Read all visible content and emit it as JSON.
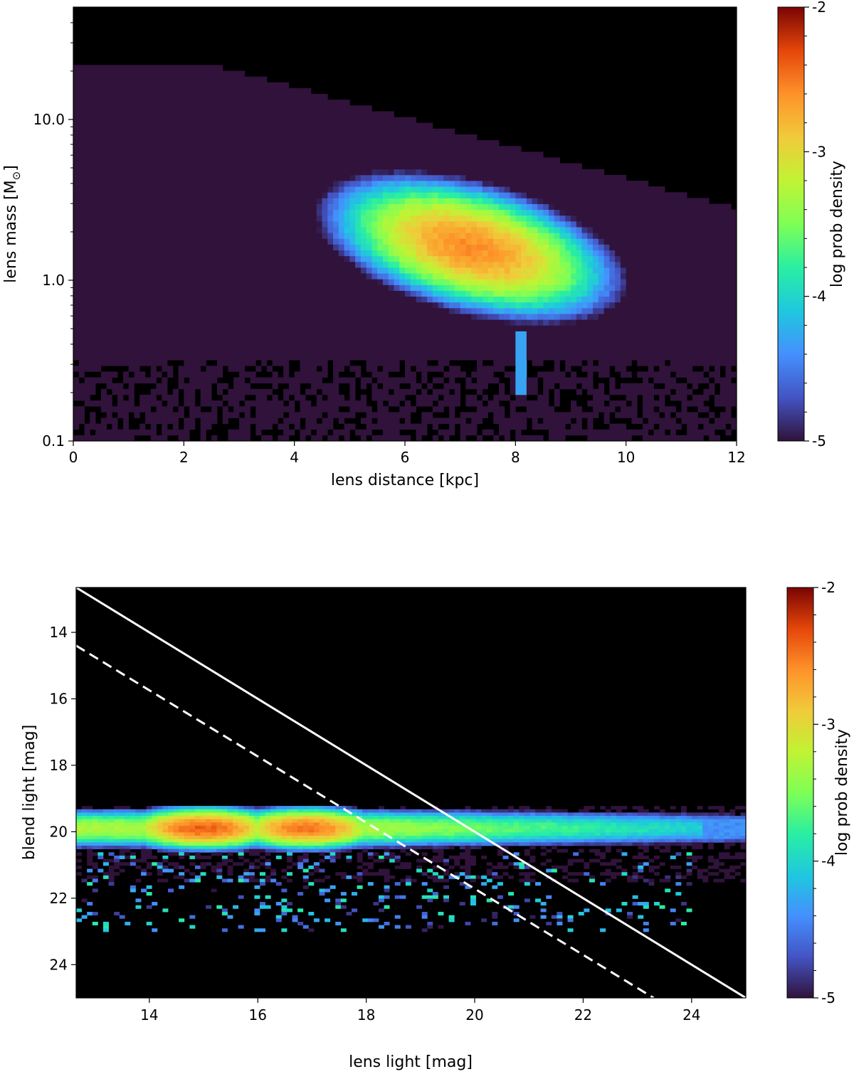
{
  "chart_data": [
    {
      "type": "heatmap",
      "title": "",
      "xlabel": "lens distance [kpc]",
      "ylabel": "lens mass [M",
      "ylabel_subscript": "⊙",
      "ylabel_suffix": "]",
      "xlim": [
        0,
        12
      ],
      "ylim": [
        0.1,
        50
      ],
      "yscale": "log",
      "x_ticks": [
        0,
        2,
        4,
        6,
        8,
        10,
        12
      ],
      "x_tick_labels": [
        "0",
        "2",
        "4",
        "6",
        "8",
        "10",
        "12"
      ],
      "y_ticks": [
        0.1,
        1.0,
        10.0
      ],
      "y_tick_labels": [
        "0.1",
        "1.0",
        "10.0"
      ],
      "background": "#000000",
      "floor_region": "lens mass below about 22 M⊙ at distance 0–2.5 kpc, falling to about 2.8 M⊙ at 12 kpc",
      "peak": {
        "x": 7.2,
        "y": 1.6,
        "log_density": -2.6
      },
      "colorbar": {
        "label": "log prob density",
        "range": [
          -5,
          -2
        ],
        "ticks": [
          -5,
          -4,
          -3,
          -2
        ],
        "tick_labels": [
          "-5",
          "-4",
          "-3",
          "-2"
        ],
        "colormap": "turbo"
      }
    },
    {
      "type": "heatmap",
      "title": "",
      "xlabel": "lens light [mag]",
      "ylabel": "blend light [mag]",
      "xlim": [
        12.65,
        25.0
      ],
      "ylim": [
        25.0,
        12.65
      ],
      "y_inverted": true,
      "x_ticks": [
        14,
        16,
        18,
        20,
        22,
        24
      ],
      "x_tick_labels": [
        "14",
        "16",
        "18",
        "20",
        "22",
        "24"
      ],
      "y_ticks": [
        14,
        16,
        18,
        20,
        22,
        24
      ],
      "y_tick_labels": [
        "14",
        "16",
        "18",
        "20",
        "22",
        "24"
      ],
      "background": "#000000",
      "peaks": [
        {
          "x": 15.0,
          "y": 19.85,
          "log_density": -2.4
        },
        {
          "x": 16.9,
          "y": 19.95,
          "log_density": -2.5
        }
      ],
      "band_y_range": [
        19.3,
        20.6
      ],
      "lines": [
        {
          "style": "solid",
          "color": "#ffffff",
          "x": [
            12.65,
            25.0
          ],
          "y": [
            12.65,
            25.0
          ]
        },
        {
          "style": "dashed",
          "color": "#ffffff",
          "x": [
            12.65,
            23.3
          ],
          "y": [
            14.4,
            25.0
          ]
        }
      ],
      "colorbar": {
        "label": "log prob density",
        "range": [
          -5,
          -2
        ],
        "ticks": [
          -5,
          -4,
          -3,
          -2
        ],
        "tick_labels": [
          "-5",
          "-4",
          "-3",
          "-2"
        ],
        "colormap": "turbo"
      }
    }
  ]
}
